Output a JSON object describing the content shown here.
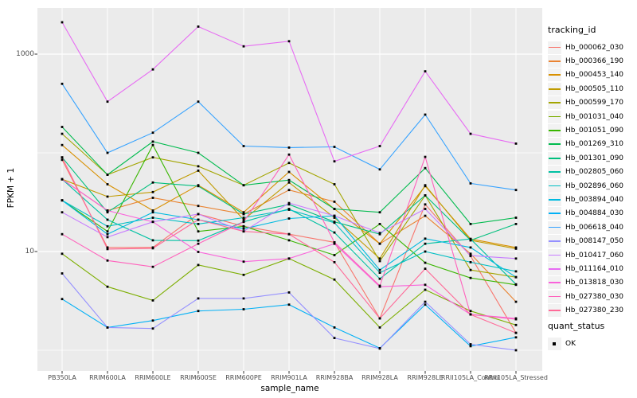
{
  "chart_data": {
    "type": "line",
    "title": "",
    "xlabel": "sample_name",
    "ylabel": "FPKM + 1",
    "y_scale": "log10",
    "ylim": [
      0.7,
      3000
    ],
    "y_ticks": [
      1000,
      10
    ],
    "grid": {
      "major": [
        1000,
        10
      ],
      "minor": [
        100,
        1
      ]
    },
    "panel_bg": "#EBEBEB",
    "gridline_color": "#FFFFFF",
    "point_color": "#000000",
    "point_shape": "square",
    "categories": [
      "PB350LA",
      "RRIM600LA",
      "RRIM600LE",
      "RRIM600SE",
      "RRIM600PE",
      "RRIM901LA",
      "RRIM928BA",
      "RRIM928LA",
      "RRIM928LE",
      "RRII105LA_Control",
      "RRII105LA_Stressed"
    ],
    "series": [
      {
        "name": "Hb_000062_030",
        "color": "#F8766D",
        "values": [
          85,
          11,
          11,
          24,
          18,
          15,
          12.4,
          2.1,
          30,
          9,
          1.5
        ]
      },
      {
        "name": "Hb_000366_190",
        "color": "#EA8331",
        "values": [
          54,
          26,
          35,
          29,
          24,
          42,
          32,
          12,
          23,
          9.5,
          3.1
        ]
      },
      {
        "name": "Hb_000453_140",
        "color": "#D89000",
        "values": [
          120,
          48,
          26,
          47,
          25,
          64,
          27,
          12,
          46,
          13.4,
          11
        ]
      },
      {
        "name": "Hb_000505_110",
        "color": "#C09B00",
        "values": [
          54,
          36,
          40,
          66,
          21,
          50,
          22,
          8.5,
          47,
          13,
          10.7
        ]
      },
      {
        "name": "Hb_000599_170",
        "color": "#A3A500",
        "values": [
          156,
          60,
          90,
          73,
          47,
          79,
          48,
          8,
          37,
          6.5,
          5.5
        ]
      },
      {
        "name": "Hb_001031_040",
        "color": "#7CAE00",
        "values": [
          9.5,
          4.4,
          3.2,
          7.3,
          5.8,
          8.5,
          5.2,
          1.7,
          4.1,
          2.5,
          1.8
        ]
      },
      {
        "name": "Hb_001051_090",
        "color": "#39B600",
        "values": [
          33,
          16,
          120,
          16,
          18,
          13,
          9.2,
          19,
          7.7,
          5.4,
          4.6
        ]
      },
      {
        "name": "Hb_001269_310",
        "color": "#00BB4E",
        "values": [
          183,
          60,
          130,
          100,
          47,
          53,
          27,
          25,
          70,
          19,
          22
        ]
      },
      {
        "name": "Hb_001301_090",
        "color": "#00BF7D",
        "values": [
          90,
          25,
          50,
          46,
          24,
          30,
          20,
          15,
          37,
          13,
          19
        ]
      },
      {
        "name": "Hb_002805_060",
        "color": "#00C1A3",
        "values": [
          54,
          21,
          13,
          12.9,
          20,
          27,
          15.6,
          5.3,
          12,
          13.4,
          4.65
        ]
      },
      {
        "name": "Hb_002896_060",
        "color": "#00BFC4",
        "values": [
          33,
          18,
          22,
          19,
          22,
          26.5,
          19.6,
          6.1,
          10,
          7.8,
          6.3
        ]
      },
      {
        "name": "Hb_003894_040",
        "color": "#00BAE0",
        "values": [
          33,
          15,
          25,
          21,
          17,
          21.6,
          23,
          6.5,
          13.5,
          11,
          5.5
        ]
      },
      {
        "name": "Hb_004884_030",
        "color": "#00B0F6",
        "values": [
          3.3,
          1.7,
          2.0,
          2.5,
          2.6,
          2.9,
          1.7,
          1.05,
          2.9,
          1.1,
          1.35
        ]
      },
      {
        "name": "Hb_006618_040",
        "color": "#35A2FF",
        "values": [
          500,
          100,
          160,
          330,
          117,
          113,
          115,
          68,
          244,
          49,
          42
        ]
      },
      {
        "name": "Hb_008147_050",
        "color": "#9590FF",
        "values": [
          6.0,
          1.7,
          1.66,
          3.35,
          3.35,
          3.85,
          1.33,
          1.04,
          3.1,
          1.15,
          1.0
        ]
      },
      {
        "name": "Hb_010417_060",
        "color": "#C77CFF",
        "values": [
          25,
          14,
          20,
          24,
          16,
          31,
          23,
          15.4,
          27,
          9.1,
          8.5
        ]
      },
      {
        "name": "Hb_011164_010",
        "color": "#E76BF3",
        "values": [
          2100,
          330,
          700,
          1900,
          1200,
          1350,
          82,
          117,
          670,
          156,
          124
        ]
      },
      {
        "name": "Hb_013818_030",
        "color": "#FA62DB",
        "values": [
          54,
          26,
          20,
          9.9,
          7.9,
          8.5,
          12,
          4.4,
          4.6,
          2.3,
          2.1
        ]
      },
      {
        "name": "Hb_027380_030",
        "color": "#FF62BC",
        "values": [
          15,
          8.1,
          7.0,
          12,
          20,
          96,
          12.4,
          4.5,
          91,
          2.3,
          2.06
        ]
      },
      {
        "name": "Hb_027380_230",
        "color": "#FF6A98",
        "values": [
          90,
          10.6,
          10.8,
          21,
          16,
          15,
          7.8,
          2.1,
          6.7,
          2.3,
          1.5
        ]
      }
    ],
    "legend": {
      "title": "tracking_id",
      "position": "right"
    },
    "legend2": {
      "title": "quant_status",
      "items": [
        {
          "label": "OK",
          "marker": "black-square"
        }
      ]
    }
  }
}
